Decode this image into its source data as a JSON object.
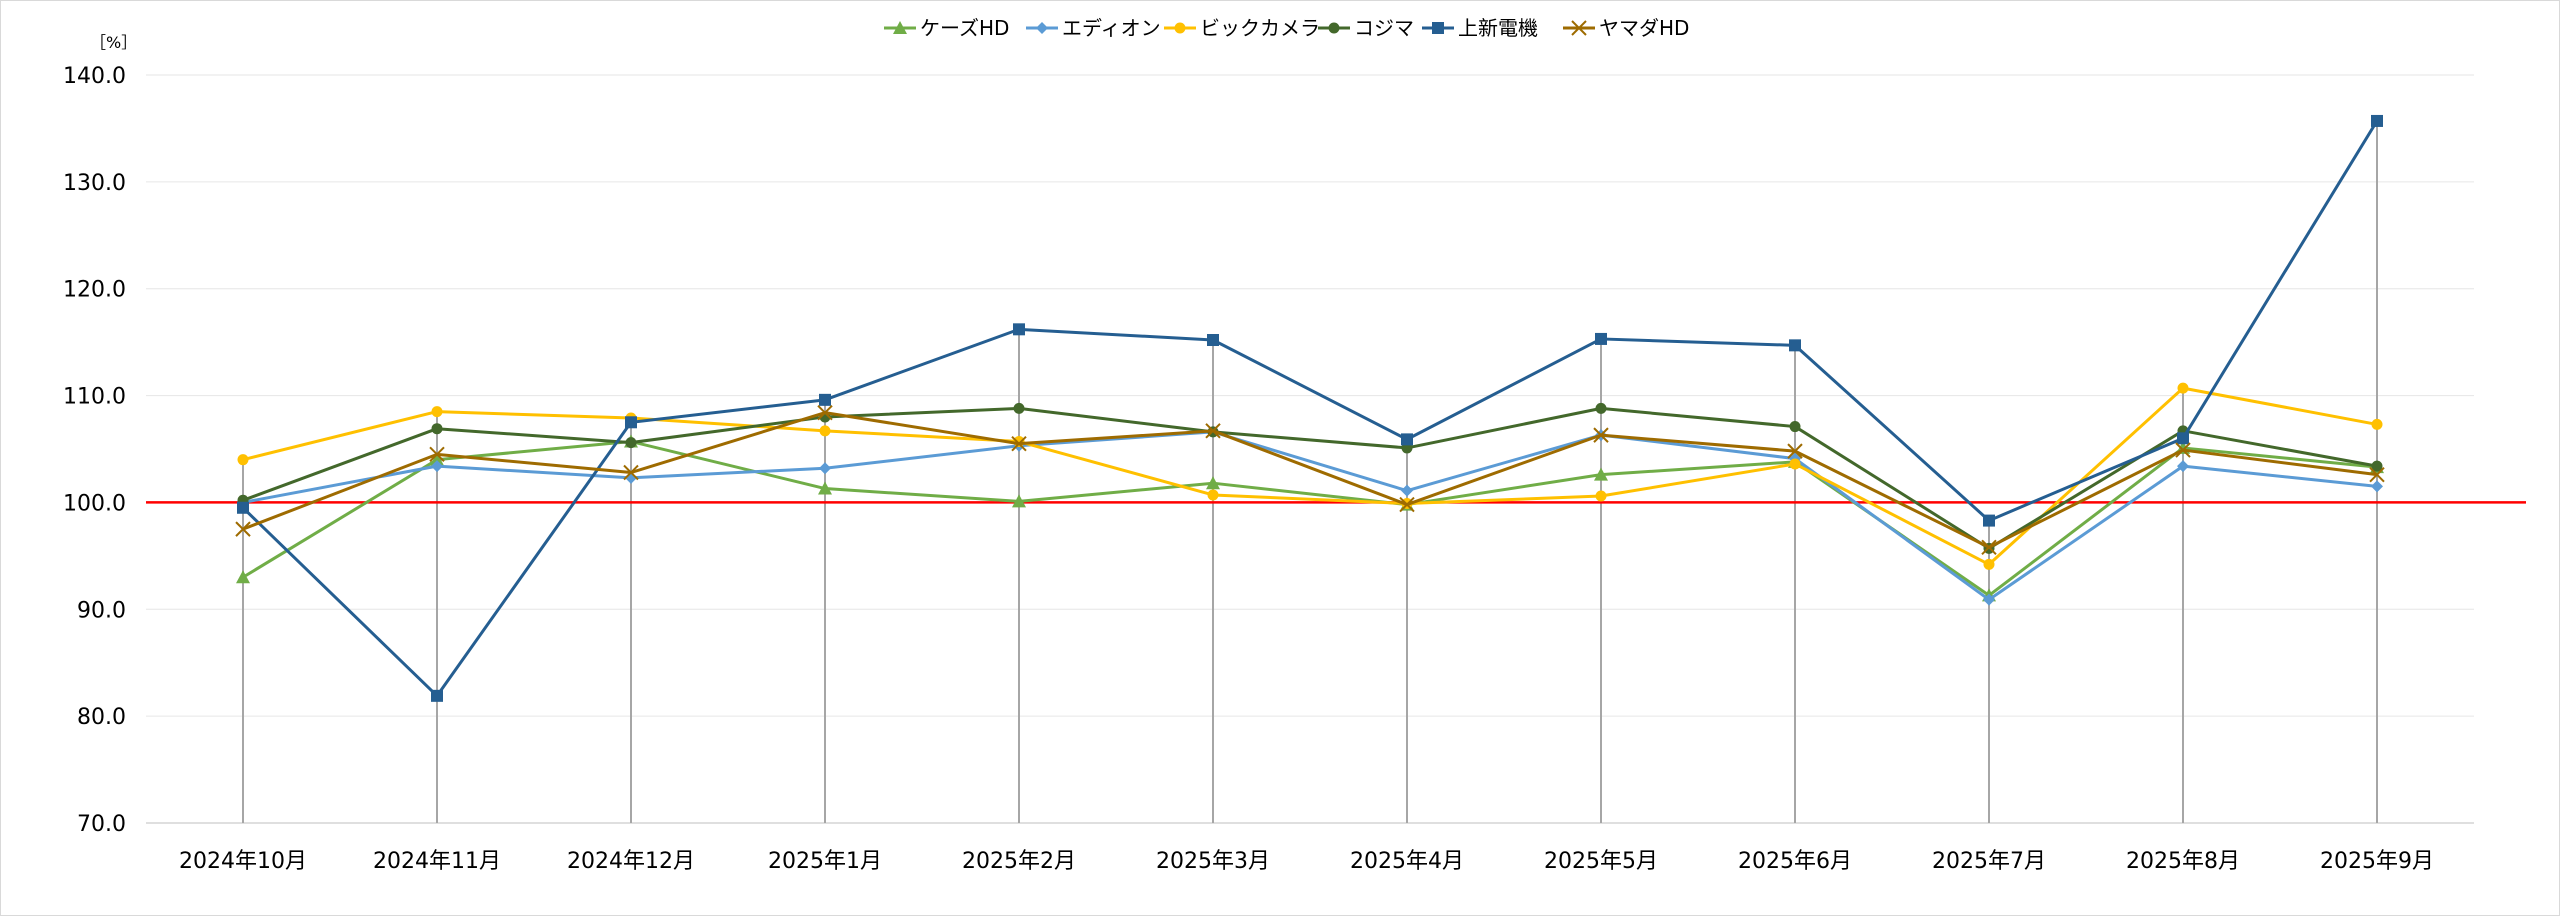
{
  "chart_data": {
    "type": "line",
    "unit_label": "［%］",
    "categories": [
      "2024年10月",
      "2024年11月",
      "2024年12月",
      "2025年1月",
      "2025年2月",
      "2025年3月",
      "2025年4月",
      "2025年5月",
      "2025年6月",
      "2025年7月",
      "2025年8月",
      "2025年9月"
    ],
    "y_ticks": [
      "70.0",
      "80.0",
      "90.0",
      "100.0",
      "110.0",
      "120.0",
      "130.0",
      "140.0"
    ],
    "ylim": [
      70,
      140
    ],
    "reference_line": {
      "value": 100,
      "color": "#ff0000"
    },
    "grid": true,
    "legend_position": "top",
    "series": [
      {
        "name": "ケーズHD",
        "color": "#70ad47",
        "marker": "triangle",
        "values": [
          93.0,
          104.0,
          105.7,
          101.3,
          100.1,
          101.8,
          99.8,
          102.6,
          103.8,
          91.3,
          105.1,
          103.3
        ]
      },
      {
        "name": "エディオン",
        "color": "#5b9bd5",
        "marker": "diamond",
        "values": [
          100.0,
          103.4,
          102.3,
          103.2,
          105.3,
          106.6,
          101.1,
          106.3,
          104.1,
          90.9,
          103.4,
          101.5
        ]
      },
      {
        "name": "ビックカメラ",
        "color": "#ffc000",
        "marker": "circle",
        "values": [
          104.0,
          108.5,
          107.9,
          106.7,
          105.7,
          100.7,
          99.9,
          100.6,
          103.6,
          94.2,
          110.7,
          107.3
        ]
      },
      {
        "name": "コジマ",
        "color": "#43682b",
        "marker": "circle",
        "values": [
          100.2,
          106.9,
          105.6,
          108.0,
          108.8,
          106.6,
          105.1,
          108.8,
          107.1,
          95.7,
          106.7,
          103.4
        ]
      },
      {
        "name": "上新電機",
        "color": "#255e91",
        "marker": "square",
        "values": [
          99.5,
          81.9,
          107.5,
          109.6,
          116.2,
          115.2,
          105.9,
          115.3,
          114.7,
          98.3,
          106.0,
          135.7
        ]
      },
      {
        "name": "ヤマダHD",
        "color": "#9e6b00",
        "marker": "x",
        "values": [
          97.5,
          104.5,
          102.8,
          108.4,
          105.5,
          106.7,
          99.8,
          106.3,
          104.8,
          95.8,
          104.9,
          102.6
        ]
      }
    ]
  }
}
